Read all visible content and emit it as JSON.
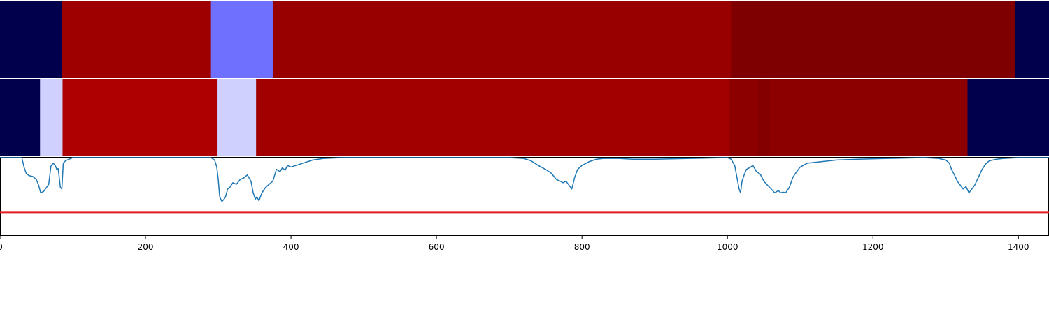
{
  "chart_data": {
    "type": "heatmap",
    "xlim": [
      0,
      1442
    ],
    "x_ticks": [
      {
        "value": 0,
        "label": "0"
      },
      {
        "value": 200,
        "label": "200"
      },
      {
        "value": 400,
        "label": "400"
      },
      {
        "value": 600,
        "label": "600"
      },
      {
        "value": 800,
        "label": "800"
      },
      {
        "value": 1000,
        "label": "1000"
      },
      {
        "value": 1200,
        "label": "1200"
      },
      {
        "value": 1400,
        "label": "1400"
      }
    ],
    "bands": [
      {
        "segments": [
          {
            "start": 0,
            "end": 85,
            "color": "#00004c"
          },
          {
            "start": 85,
            "end": 290,
            "color": "#9e0000"
          },
          {
            "start": 290,
            "end": 375,
            "color": "#7070ff"
          },
          {
            "start": 375,
            "end": 1005,
            "color": "#980000"
          },
          {
            "start": 1005,
            "end": 1395,
            "color": "#7e0000"
          },
          {
            "start": 1395,
            "end": 1442,
            "color": "#00004c"
          }
        ]
      },
      {
        "segments": [
          {
            "start": 0,
            "end": 55,
            "color": "#00004c"
          },
          {
            "start": 55,
            "end": 86,
            "color": "#d0d0ff"
          },
          {
            "start": 86,
            "end": 299,
            "color": "#ae0000"
          },
          {
            "start": 299,
            "end": 352,
            "color": "#d0d0ff"
          },
          {
            "start": 352,
            "end": 1003,
            "color": "#a20000"
          },
          {
            "start": 1003,
            "end": 1042,
            "color": "#8c0000"
          },
          {
            "start": 1042,
            "end": 1058,
            "color": "#840000"
          },
          {
            "start": 1058,
            "end": 1330,
            "color": "#8c0000"
          },
          {
            "start": 1330,
            "end": 1442,
            "color": "#00004c"
          }
        ]
      }
    ],
    "line_panel": {
      "ylim": [
        0,
        1
      ],
      "threshold": 0.3,
      "threshold_color": "#e31a1c",
      "line_color": "#1f77b4",
      "x": [
        0,
        30,
        33,
        36,
        40,
        45,
        50,
        53,
        56,
        60,
        64,
        67,
        70,
        73,
        76,
        78,
        80,
        83,
        85,
        87,
        90,
        95,
        100,
        110,
        130,
        200,
        280,
        290,
        295,
        298,
        300,
        302,
        305,
        308,
        310,
        313,
        316,
        320,
        325,
        330,
        335,
        340,
        345,
        348,
        351,
        353,
        356,
        360,
        365,
        370,
        375,
        380,
        385,
        388,
        392,
        395,
        400,
        410,
        420,
        430,
        445,
        470,
        500,
        600,
        700,
        720,
        730,
        740,
        750,
        758,
        765,
        770,
        774,
        778,
        782,
        786,
        790,
        794,
        800,
        810,
        820,
        830,
        850,
        870,
        900,
        950,
        1000,
        1005,
        1010,
        1013,
        1016,
        1018,
        1020,
        1023,
        1026,
        1030,
        1035,
        1040,
        1045,
        1050,
        1055,
        1060,
        1065,
        1070,
        1073,
        1076,
        1080,
        1085,
        1090,
        1095,
        1100,
        1110,
        1130,
        1150,
        1180,
        1220,
        1270,
        1290,
        1300,
        1305,
        1308,
        1312,
        1316,
        1320,
        1324,
        1328,
        1332,
        1336,
        1340,
        1345,
        1350,
        1355,
        1360,
        1370,
        1380,
        1400,
        1442
      ],
      "y": [
        1.0,
        1.0,
        0.88,
        0.8,
        0.77,
        0.76,
        0.72,
        0.65,
        0.55,
        0.57,
        0.62,
        0.66,
        0.89,
        0.93,
        0.9,
        0.85,
        0.86,
        0.62,
        0.6,
        0.93,
        0.96,
        0.98,
        1.0,
        1.0,
        1.0,
        1.0,
        1.0,
        1.0,
        0.97,
        0.88,
        0.72,
        0.5,
        0.44,
        0.47,
        0.5,
        0.6,
        0.62,
        0.68,
        0.66,
        0.72,
        0.74,
        0.78,
        0.7,
        0.55,
        0.47,
        0.5,
        0.45,
        0.55,
        0.62,
        0.66,
        0.7,
        0.85,
        0.82,
        0.87,
        0.84,
        0.9,
        0.88,
        0.91,
        0.94,
        0.97,
        0.99,
        1.0,
        1.0,
        1.0,
        1.0,
        0.99,
        0.96,
        0.9,
        0.85,
        0.8,
        0.72,
        0.7,
        0.68,
        0.7,
        0.65,
        0.6,
        0.75,
        0.85,
        0.9,
        0.95,
        0.98,
        0.99,
        0.99,
        0.98,
        0.98,
        0.99,
        1.0,
        0.98,
        0.9,
        0.75,
        0.6,
        0.55,
        0.7,
        0.78,
        0.85,
        0.87,
        0.9,
        0.82,
        0.79,
        0.7,
        0.65,
        0.6,
        0.55,
        0.58,
        0.55,
        0.56,
        0.55,
        0.62,
        0.75,
        0.82,
        0.88,
        0.93,
        0.95,
        0.97,
        0.98,
        0.99,
        1.0,
        0.99,
        0.97,
        0.93,
        0.85,
        0.78,
        0.7,
        0.65,
        0.6,
        0.63,
        0.55,
        0.6,
        0.65,
        0.75,
        0.85,
        0.92,
        0.96,
        0.98,
        0.99,
        1.0,
        1.0
      ]
    }
  }
}
